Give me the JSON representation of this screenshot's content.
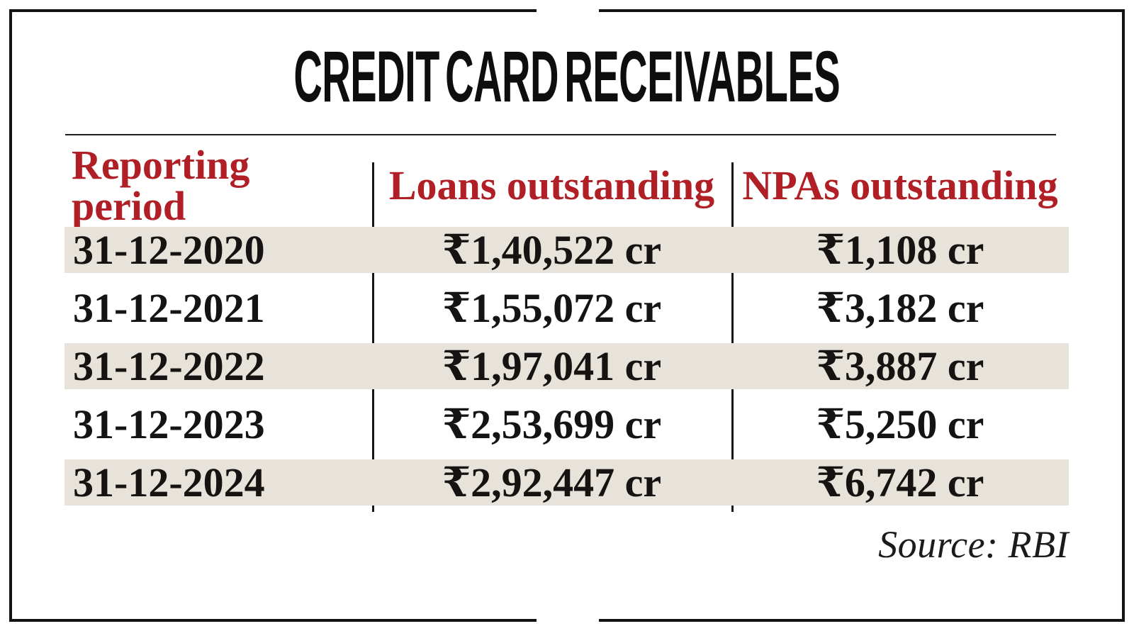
{
  "title": "CREDIT CARD RECEIVABLES",
  "source": "Source: RBI",
  "colors": {
    "accent_red": "#b01f26",
    "stripe_beige": "#e8e3da",
    "ink_black": "#121212"
  },
  "chart_data": {
    "type": "table",
    "title": "CREDIT CARD RECEIVABLES",
    "columns": [
      "Reporting period",
      "Loans outstanding",
      "NPAs outstanding"
    ],
    "rows": [
      [
        "31-12-2020",
        "₹1,40,522 cr",
        "₹1,108 cr"
      ],
      [
        "31-12-2021",
        "₹1,55,072 cr",
        "₹3,182 cr"
      ],
      [
        "31-12-2022",
        "₹1,97,041 cr",
        "₹3,887 cr"
      ],
      [
        "31-12-2023",
        "₹2,53,699 cr",
        "₹5,250 cr"
      ],
      [
        "31-12-2024",
        "₹2,92,447 cr",
        "₹6,742 cr"
      ]
    ],
    "numeric": {
      "unit": "₹ crore",
      "reporting_periods": [
        "31-12-2020",
        "31-12-2021",
        "31-12-2022",
        "31-12-2023",
        "31-12-2024"
      ],
      "loans_outstanding_cr": [
        140522,
        155072,
        197041,
        253699,
        292447
      ],
      "npas_outstanding_cr": [
        1108,
        3182,
        3887,
        5250,
        6742
      ]
    },
    "source": "Source: RBI",
    "layout": {
      "striped_row_indices": [
        0,
        2,
        4
      ],
      "column_dividers": true,
      "legend_position": "none"
    }
  }
}
